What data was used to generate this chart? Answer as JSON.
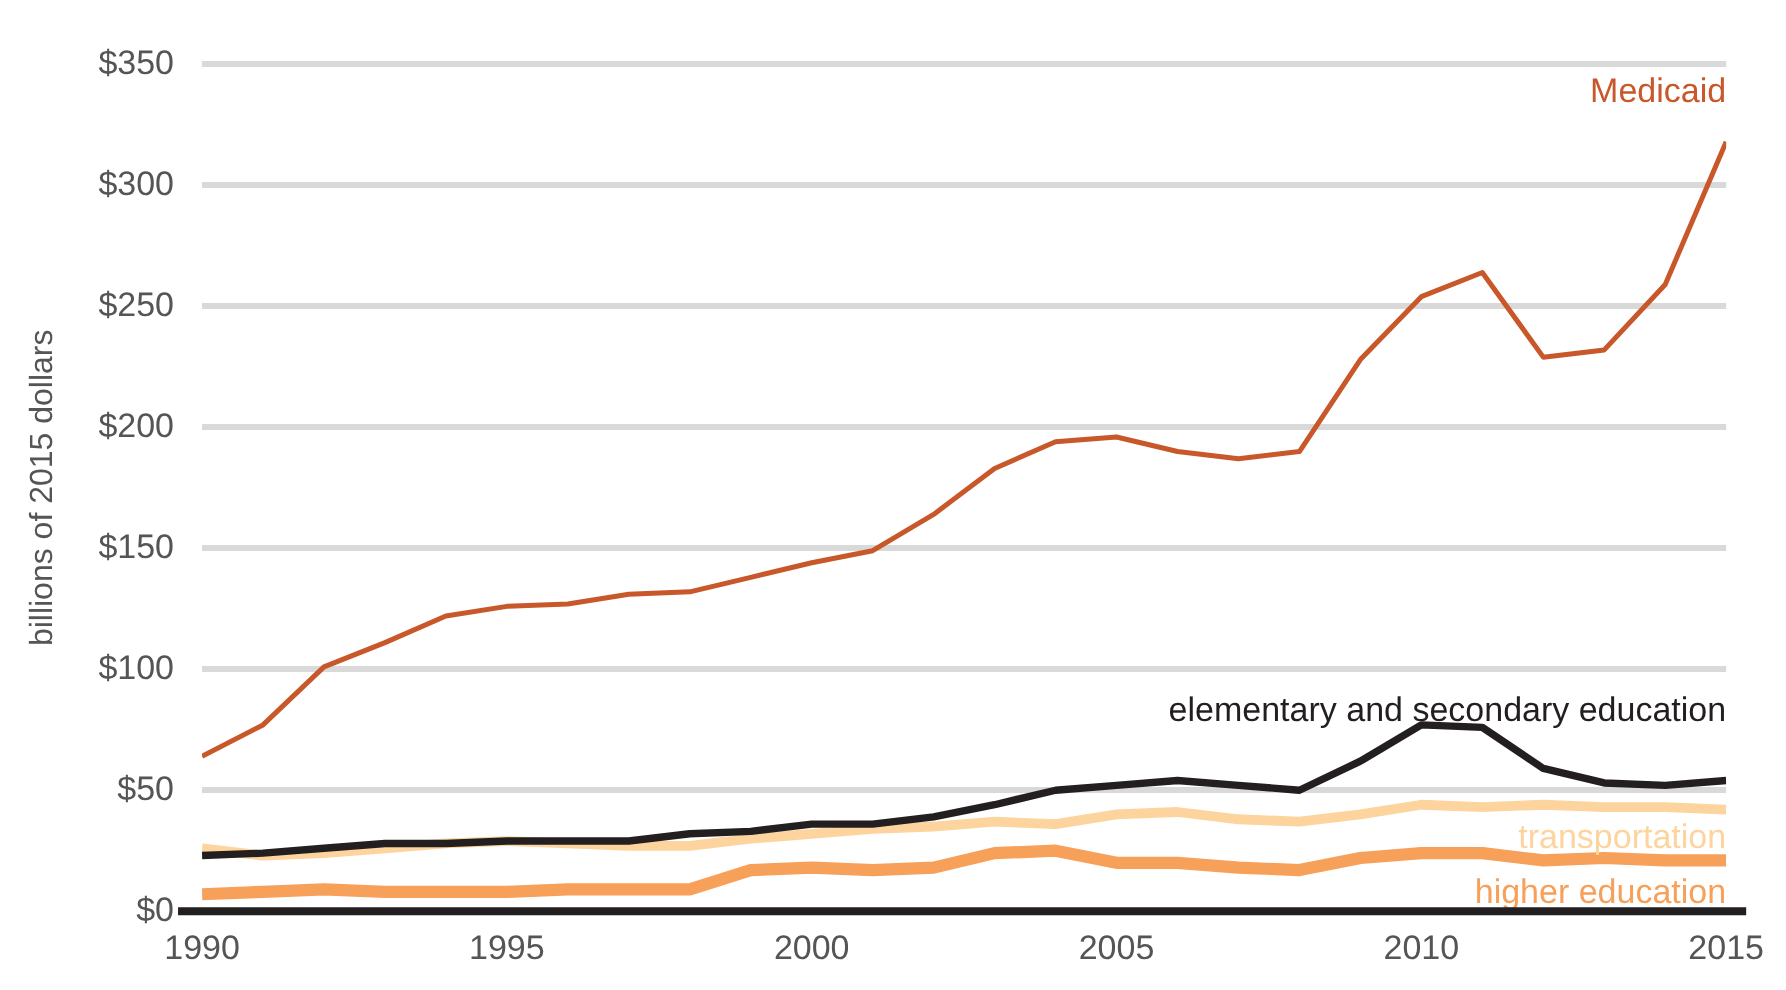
{
  "chart_data": {
    "type": "line",
    "ylabel": "billions of 2015 dollars",
    "x": [
      1990,
      1991,
      1992,
      1993,
      1994,
      1995,
      1996,
      1997,
      1998,
      1999,
      2000,
      2001,
      2002,
      2003,
      2004,
      2005,
      2006,
      2007,
      2008,
      2009,
      2010,
      2011,
      2012,
      2013,
      2014,
      2015
    ],
    "series": [
      {
        "name": "Medicaid",
        "color": "#c8582a",
        "values": [
          64,
          77,
          101,
          111,
          122,
          126,
          127,
          131,
          132,
          138,
          144,
          149,
          164,
          183,
          194,
          196,
          190,
          187,
          190,
          228,
          254,
          264,
          229,
          232,
          259,
          318
        ]
      },
      {
        "name": "elementary and secondary education",
        "color": "#231f20",
        "values": [
          23,
          24,
          26,
          28,
          28,
          29,
          29,
          29,
          32,
          33,
          36,
          36,
          39,
          44,
          50,
          52,
          54,
          52,
          50,
          62,
          77,
          76,
          59,
          53,
          52,
          54
        ]
      },
      {
        "name": "transportation",
        "color": "#fdd49e",
        "values": [
          26,
          23,
          24,
          26,
          28,
          29,
          28,
          27,
          27,
          30,
          32,
          34,
          35,
          37,
          36,
          40,
          41,
          38,
          37,
          40,
          44,
          43,
          44,
          43,
          43,
          42
        ]
      },
      {
        "name": "higher education",
        "color": "#f7a05a",
        "values": [
          7,
          8,
          9,
          8,
          8,
          8,
          9,
          9,
          9,
          17,
          18,
          17,
          18,
          24,
          25,
          20,
          20,
          18,
          17,
          22,
          24,
          24,
          21,
          22,
          21,
          21
        ]
      }
    ],
    "xlim": [
      1990,
      2015
    ],
    "xticks": [
      1990,
      1995,
      2000,
      2005,
      2010,
      2015
    ],
    "ylim": [
      0,
      350
    ],
    "yticks": [
      {
        "value": 0,
        "label": "$0"
      },
      {
        "value": 50,
        "label": "$50"
      },
      {
        "value": 100,
        "label": "$100"
      },
      {
        "value": 150,
        "label": "$150"
      },
      {
        "value": 200,
        "label": "$200"
      },
      {
        "value": 250,
        "label": "$250"
      },
      {
        "value": 300,
        "label": "$300"
      },
      {
        "value": 350,
        "label": "$350"
      }
    ],
    "grid": "y",
    "legend": false,
    "marker": "none",
    "line_style": "solid"
  }
}
